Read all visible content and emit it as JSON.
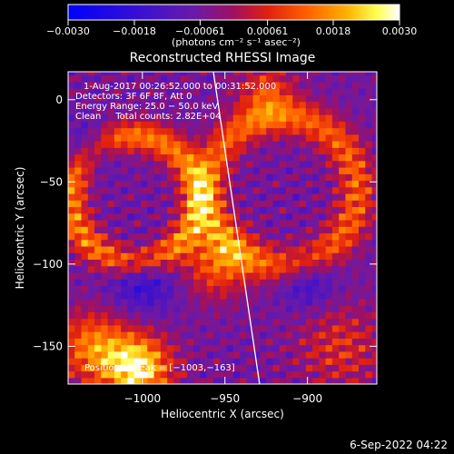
{
  "chart_data": {
    "type": "heatmap",
    "title": "Reconstructed RHESSI Image",
    "xlabel": "Heliocentric X (arcsec)",
    "ylabel": "Heliocentric Y (arcsec)",
    "xlim": [
      -1045,
      -858
    ],
    "ylim": [
      -173,
      17
    ],
    "x_ticks": [
      -1000,
      -950,
      -900
    ],
    "y_ticks": [
      0,
      -50,
      -100,
      -150
    ],
    "x_tick_labels": [
      "−1000",
      "−950",
      "−900"
    ],
    "y_tick_labels": [
      "0",
      "−50",
      "−100",
      "−150"
    ],
    "colorbar": {
      "min": -0.003,
      "max": 0.003,
      "ticks": [
        -0.003,
        -0.0018,
        -0.00061,
        0.00061,
        0.0018,
        0.003
      ],
      "tick_labels": [
        "−0.0030",
        "−0.0018",
        "−0.00061",
        "0.00061",
        "0.0018",
        "0.0030"
      ],
      "unit_label": "(photons cm⁻² s⁻¹ asec⁻²)",
      "colormap": "blue-purple-red-yellow-white"
    },
    "annotations": {
      "time_range": "1-Aug-2017 00:26:52.000 to 00:31:52.000",
      "detectors": "Detectors: 3F 6F 8F, Att 0",
      "energy_range": "Energy Range: 25.0 − 50.0 keV",
      "clean": "Clean     Total counts: 2.82E+04",
      "peak": "Position of Peak = [−1003,−163]"
    },
    "peak_position": [
      -1003,
      -163
    ],
    "limb_line": [
      [
        -957,
        17
      ],
      [
        -929,
        -173
      ]
    ],
    "grid": false
  },
  "footer": {
    "timestamp": "6-Sep-2022 04:22"
  }
}
